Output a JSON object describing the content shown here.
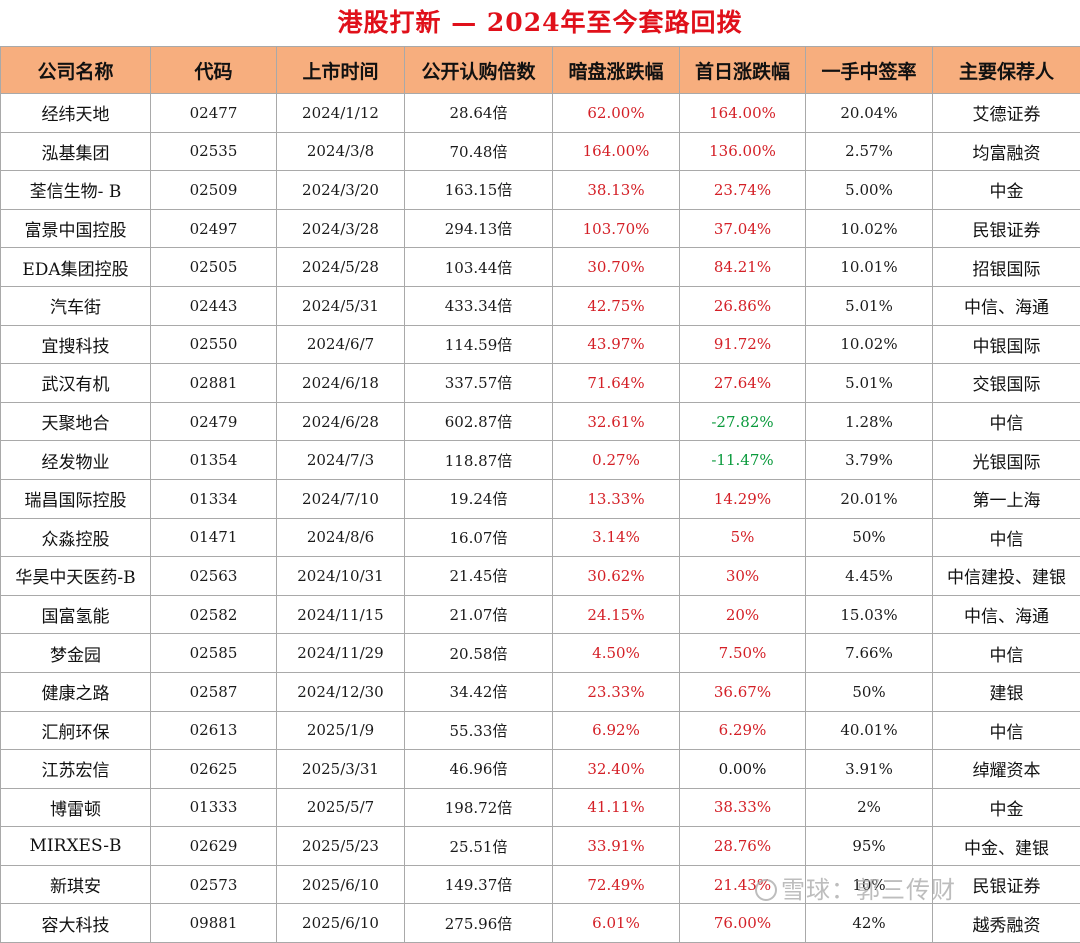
{
  "title": "港股打新 — 2024年至今套路回拨",
  "headers": [
    "公司名称",
    "代码",
    "上市时间",
    "公开认购倍数",
    "暗盘涨跌幅",
    "首日涨跌幅",
    "一手中签率",
    "主要保荐人"
  ],
  "colors": {
    "up": "#d41f26",
    "down": "#0a9a3c",
    "header_bg": "#f7ae7e",
    "title": "#e0101a"
  },
  "rows": [
    {
      "name": "经纬天地",
      "code": "02477",
      "date": "2024/1/12",
      "sub": "28.64倍",
      "grey": "62.00%",
      "first": "164.00%",
      "lot": "20.04%",
      "sponsor": "艾德证券",
      "grey_dir": "up",
      "first_dir": "up"
    },
    {
      "name": "泓基集团",
      "code": "02535",
      "date": "2024/3/8",
      "sub": "70.48倍",
      "grey": "164.00%",
      "first": "136.00%",
      "lot": "2.57%",
      "sponsor": "均富融资",
      "grey_dir": "up",
      "first_dir": "up"
    },
    {
      "name": "荃信生物- B",
      "code": "02509",
      "date": "2024/3/20",
      "sub": "163.15倍",
      "grey": "38.13%",
      "first": "23.74%",
      "lot": "5.00%",
      "sponsor": "中金",
      "grey_dir": "up",
      "first_dir": "up"
    },
    {
      "name": "富景中国控股",
      "code": "02497",
      "date": "2024/3/28",
      "sub": "294.13倍",
      "grey": "103.70%",
      "first": "37.04%",
      "lot": "10.02%",
      "sponsor": "民银证券",
      "grey_dir": "up",
      "first_dir": "up"
    },
    {
      "name": "EDA集团控股",
      "code": "02505",
      "date": "2024/5/28",
      "sub": "103.44倍",
      "grey": "30.70%",
      "first": "84.21%",
      "lot": "10.01%",
      "sponsor": "招银国际",
      "grey_dir": "up",
      "first_dir": "up"
    },
    {
      "name": "汽车街",
      "code": "02443",
      "date": "2024/5/31",
      "sub": "433.34倍",
      "grey": "42.75%",
      "first": "26.86%",
      "lot": "5.01%",
      "sponsor": "中信、海通",
      "grey_dir": "up",
      "first_dir": "up"
    },
    {
      "name": "宜搜科技",
      "code": "02550",
      "date": "2024/6/7",
      "sub": "114.59倍",
      "grey": "43.97%",
      "first": "91.72%",
      "lot": "10.02%",
      "sponsor": "中银国际",
      "grey_dir": "up",
      "first_dir": "up"
    },
    {
      "name": "武汉有机",
      "code": "02881",
      "date": "2024/6/18",
      "sub": "337.57倍",
      "grey": "71.64%",
      "first": "27.64%",
      "lot": "5.01%",
      "sponsor": "交银国际",
      "grey_dir": "up",
      "first_dir": "up"
    },
    {
      "name": "天聚地合",
      "code": "02479",
      "date": "2024/6/28",
      "sub": "602.87倍",
      "grey": "32.61%",
      "first": "-27.82%",
      "lot": "1.28%",
      "sponsor": "中信",
      "grey_dir": "up",
      "first_dir": "down"
    },
    {
      "name": "经发物业",
      "code": "01354",
      "date": "2024/7/3",
      "sub": "118.87倍",
      "grey": "0.27%",
      "first": "-11.47%",
      "lot": "3.79%",
      "sponsor": "光银国际",
      "grey_dir": "up",
      "first_dir": "down"
    },
    {
      "name": "瑞昌国际控股",
      "code": "01334",
      "date": "2024/7/10",
      "sub": "19.24倍",
      "grey": "13.33%",
      "first": "14.29%",
      "lot": "20.01%",
      "sponsor": "第一上海",
      "grey_dir": "up",
      "first_dir": "up"
    },
    {
      "name": "众淼控股",
      "code": "01471",
      "date": "2024/8/6",
      "sub": "16.07倍",
      "grey": "3.14%",
      "first": "5%",
      "lot": "50%",
      "sponsor": "中信",
      "grey_dir": "up",
      "first_dir": "up"
    },
    {
      "name": "华昊中天医药-B",
      "code": "02563",
      "date": "2024/10/31",
      "sub": "21.45倍",
      "grey": "30.62%",
      "first": "30%",
      "lot": "4.45%",
      "sponsor": "中信建投、建银",
      "grey_dir": "up",
      "first_dir": "up"
    },
    {
      "name": "国富氢能",
      "code": "02582",
      "date": "2024/11/15",
      "sub": "21.07倍",
      "grey": "24.15%",
      "first": "20%",
      "lot": "15.03%",
      "sponsor": "中信、海通",
      "grey_dir": "up",
      "first_dir": "up"
    },
    {
      "name": "梦金园",
      "code": "02585",
      "date": "2024/11/29",
      "sub": "20.58倍",
      "grey": "4.50%",
      "first": "7.50%",
      "lot": "7.66%",
      "sponsor": "中信",
      "grey_dir": "up",
      "first_dir": "up"
    },
    {
      "name": "健康之路",
      "code": "02587",
      "date": "2024/12/30",
      "sub": "34.42倍",
      "grey": "23.33%",
      "first": "36.67%",
      "lot": "50%",
      "sponsor": "建银",
      "grey_dir": "up",
      "first_dir": "up"
    },
    {
      "name": "汇舸环保",
      "code": "02613",
      "date": "2025/1/9",
      "sub": "55.33倍",
      "grey": "6.92%",
      "first": "6.29%",
      "lot": "40.01%",
      "sponsor": "中信",
      "grey_dir": "up",
      "first_dir": "up"
    },
    {
      "name": "江苏宏信",
      "code": "02625",
      "date": "2025/3/31",
      "sub": "46.96倍",
      "grey": "32.40%",
      "first": "0.00%",
      "lot": "3.91%",
      "sponsor": "绰耀资本",
      "grey_dir": "up",
      "first_dir": "flat"
    },
    {
      "name": "博雷顿",
      "code": "01333",
      "date": "2025/5/7",
      "sub": "198.72倍",
      "grey": "41.11%",
      "first": "38.33%",
      "lot": "2%",
      "sponsor": "中金",
      "grey_dir": "up",
      "first_dir": "up"
    },
    {
      "name": "MIRXES-B",
      "code": "02629",
      "date": "2025/5/23",
      "sub": "25.51倍",
      "grey": "33.91%",
      "first": "28.76%",
      "lot": "95%",
      "sponsor": "中金、建银",
      "grey_dir": "up",
      "first_dir": "up"
    },
    {
      "name": "新琪安",
      "code": "02573",
      "date": "2025/6/10",
      "sub": "149.37倍",
      "grey": "72.49%",
      "first": "21.43%",
      "lot": "10%",
      "sponsor": "民银证券",
      "grey_dir": "up",
      "first_dir": "up"
    },
    {
      "name": "容大科技",
      "code": "09881",
      "date": "2025/6/10",
      "sub": "275.96倍",
      "grey": "6.01%",
      "first": "76.00%",
      "lot": "42%",
      "sponsor": "越秀融资",
      "grey_dir": "up",
      "first_dir": "up"
    }
  ],
  "watermark": "雪球：郭三传财"
}
